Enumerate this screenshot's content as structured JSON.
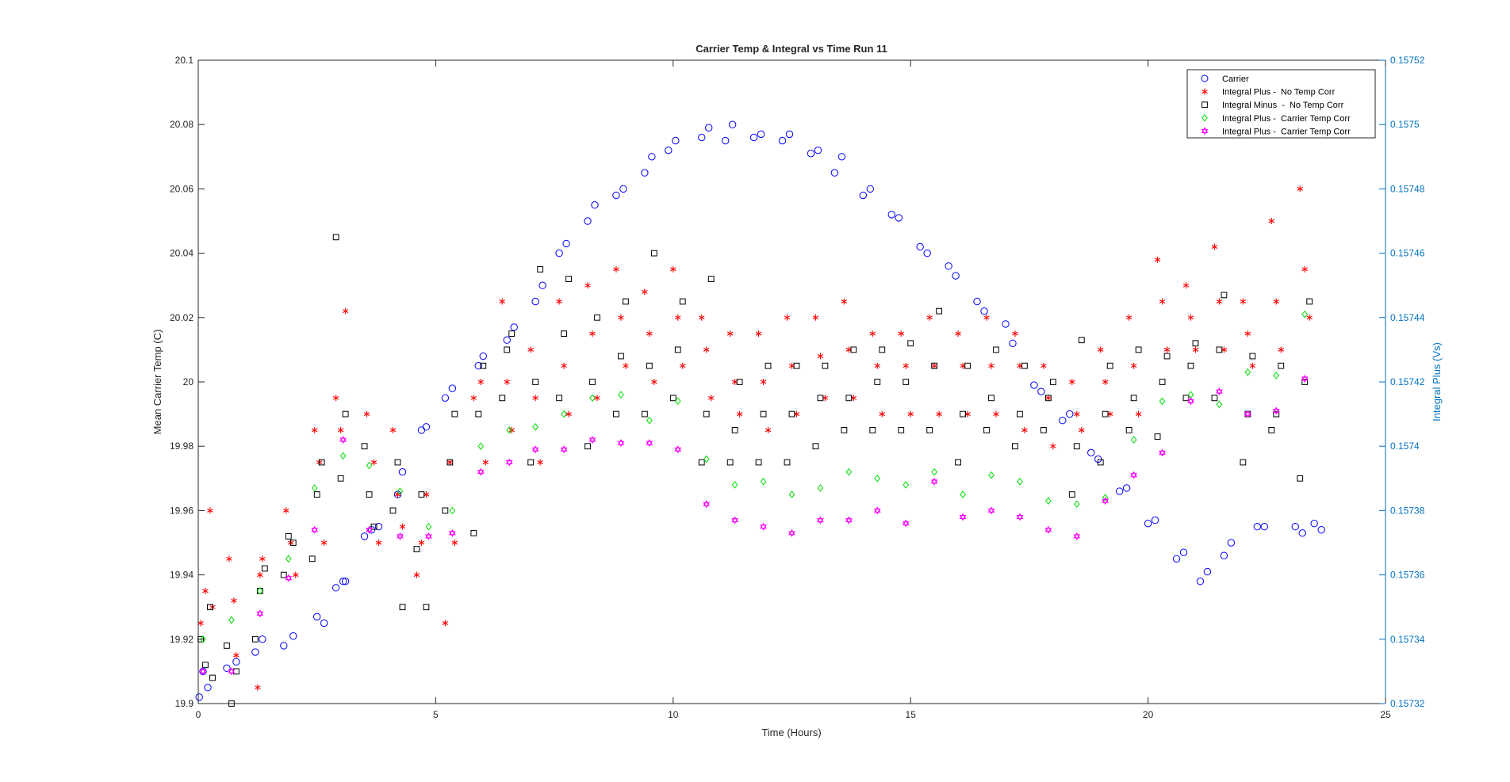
{
  "chart_data": {
    "type": "scatter",
    "title": "Carrier Temp & Integral vs Time Run 11",
    "xlabel": "Time (Hours)",
    "ylabel": "Mean Carrier Temp (C)",
    "ylabel_right": "Integral Plus (Vs)",
    "xlim": [
      0,
      25
    ],
    "ylim": [
      19.9,
      20.1
    ],
    "ylim_right": [
      0.15732,
      0.15752
    ],
    "x_ticks": [
      "0",
      "5",
      "10",
      "15",
      "20",
      "25"
    ],
    "y_ticks": [
      "19.9",
      "19.92",
      "19.94",
      "19.96",
      "19.98",
      "20",
      "20.02",
      "20.04",
      "20.06",
      "20.08",
      "20.1"
    ],
    "y_ticks_right": [
      "0.15732",
      "0.15734",
      "0.15736",
      "0.15738",
      "0.1574",
      "0.15742",
      "0.15744",
      "0.15746",
      "0.15748",
      "0.1575",
      "0.15752"
    ],
    "legend_position": "top-right",
    "grid": false,
    "colors": {
      "carrier": "#0000FF",
      "integral_plus_no_corr": "#FF0000",
      "integral_minus_no_corr": "#000000",
      "integral_plus_carrier_corr": "#00DD00",
      "integral_plus_carrier_corr_2": "#FF00FF",
      "right_axis": "#0072BD"
    },
    "series": [
      {
        "name": "Carrier",
        "axis": "left",
        "marker": "circle",
        "x": [
          0.02,
          0.1,
          0.2,
          0.6,
          0.8,
          1.2,
          1.35,
          1.8,
          2.0,
          2.5,
          2.65,
          2.9,
          3.05,
          3.1,
          3.5,
          3.65,
          3.8,
          4.2,
          4.3,
          4.7,
          4.8,
          5.2,
          5.35,
          5.9,
          6.0,
          6.5,
          6.65,
          7.1,
          7.25,
          7.6,
          7.75,
          8.2,
          8.35,
          8.8,
          8.95,
          9.4,
          9.55,
          9.9,
          10.05,
          10.6,
          10.75,
          11.1,
          11.25,
          11.7,
          11.85,
          12.3,
          12.45,
          12.9,
          13.05,
          13.4,
          13.55,
          14.0,
          14.15,
          14.6,
          14.75,
          15.2,
          15.35,
          15.8,
          15.95,
          16.4,
          16.55,
          17.0,
          17.15,
          17.6,
          17.75,
          18.2,
          18.35,
          18.8,
          18.95,
          19.4,
          19.55,
          20.0,
          20.15,
          20.6,
          20.75,
          21.1,
          21.25,
          21.6,
          21.75,
          22.3,
          22.45,
          23.1,
          23.25,
          23.5,
          23.65
        ],
        "y": [
          19.902,
          19.91,
          19.905,
          19.911,
          19.913,
          19.916,
          19.92,
          19.918,
          19.921,
          19.927,
          19.925,
          19.936,
          19.938,
          19.938,
          19.952,
          19.954,
          19.955,
          19.965,
          19.972,
          19.985,
          19.986,
          19.995,
          19.998,
          20.005,
          20.008,
          20.013,
          20.017,
          20.025,
          20.03,
          20.04,
          20.043,
          20.05,
          20.055,
          20.058,
          20.06,
          20.065,
          20.07,
          20.072,
          20.075,
          20.076,
          20.079,
          20.075,
          20.08,
          20.076,
          20.077,
          20.075,
          20.077,
          20.071,
          20.072,
          20.065,
          20.07,
          20.058,
          20.06,
          20.052,
          20.051,
          20.042,
          20.04,
          20.036,
          20.033,
          20.025,
          20.022,
          20.018,
          20.012,
          19.999,
          19.997,
          19.988,
          19.99,
          19.978,
          19.976,
          19.966,
          19.967,
          19.956,
          19.957,
          19.945,
          19.947,
          19.938,
          19.941,
          19.946,
          19.95,
          19.955,
          19.955,
          19.955,
          19.953,
          19.956,
          19.954
        ]
      },
      {
        "name": "Integral Plus -  No Temp Corr",
        "axis": "left",
        "marker": "asterisk",
        "x": [
          0.05,
          0.15,
          0.25,
          0.3,
          0.65,
          0.75,
          0.8,
          1.25,
          1.3,
          1.35,
          1.85,
          1.95,
          2.05,
          2.45,
          2.55,
          2.65,
          2.9,
          3.0,
          3.1,
          3.55,
          3.7,
          3.8,
          4.1,
          4.2,
          4.3,
          4.6,
          4.7,
          4.8,
          5.2,
          5.3,
          5.4,
          5.8,
          5.95,
          6.05,
          6.4,
          6.5,
          6.6,
          7.0,
          7.1,
          7.2,
          7.6,
          7.7,
          7.8,
          8.2,
          8.3,
          8.4,
          8.8,
          8.9,
          9.0,
          9.4,
          9.5,
          9.6,
          10.0,
          10.1,
          10.2,
          10.6,
          10.7,
          10.8,
          11.2,
          11.3,
          11.4,
          11.8,
          11.9,
          12.0,
          12.4,
          12.5,
          12.6,
          13.0,
          13.1,
          13.2,
          13.6,
          13.7,
          13.8,
          14.2,
          14.3,
          14.4,
          14.8,
          14.9,
          15.0,
          15.4,
          15.5,
          15.6,
          16.0,
          16.1,
          16.2,
          16.6,
          16.7,
          16.8,
          17.2,
          17.3,
          17.4,
          17.8,
          17.9,
          18.0,
          18.4,
          18.5,
          18.6,
          19.0,
          19.1,
          19.2,
          19.6,
          19.7,
          19.8,
          20.2,
          20.3,
          20.4,
          20.8,
          20.9,
          21.0,
          21.4,
          21.5,
          21.6,
          22.0,
          22.1,
          22.2,
          22.6,
          22.7,
          22.8,
          23.2,
          23.3,
          23.4
        ],
        "y": [
          19.925,
          19.935,
          19.96,
          19.93,
          19.945,
          19.932,
          19.915,
          19.905,
          19.94,
          19.945,
          19.96,
          19.95,
          19.94,
          19.985,
          19.975,
          19.95,
          19.995,
          19.985,
          20.022,
          19.99,
          19.975,
          19.95,
          19.985,
          19.965,
          19.955,
          19.94,
          19.95,
          19.965,
          19.925,
          19.975,
          19.95,
          19.995,
          20.0,
          19.975,
          20.025,
          20.0,
          19.985,
          20.01,
          19.995,
          19.975,
          20.025,
          20.005,
          19.99,
          20.03,
          20.015,
          19.995,
          20.035,
          20.02,
          20.005,
          20.028,
          20.015,
          20.0,
          20.035,
          20.02,
          20.005,
          20.02,
          20.01,
          19.995,
          20.015,
          20.0,
          19.99,
          20.015,
          20.0,
          19.985,
          20.02,
          20.005,
          19.99,
          20.02,
          20.008,
          19.995,
          20.025,
          20.01,
          19.995,
          20.015,
          20.005,
          19.99,
          20.015,
          20.005,
          19.99,
          20.02,
          20.005,
          19.99,
          20.015,
          20.005,
          19.99,
          20.02,
          20.005,
          19.99,
          20.015,
          20.005,
          19.985,
          20.005,
          19.995,
          19.98,
          20.0,
          19.99,
          19.985,
          20.01,
          20.0,
          19.99,
          20.02,
          20.005,
          19.99,
          20.038,
          20.025,
          20.01,
          20.03,
          20.02,
          20.01,
          20.042,
          20.025,
          20.01,
          20.025,
          20.015,
          20.005,
          20.05,
          20.025,
          20.01,
          20.06,
          20.035,
          20.02
        ]
      },
      {
        "name": "Integral Minus  -  No Temp Corr",
        "axis": "left",
        "marker": "square",
        "x": [
          0.05,
          0.15,
          0.25,
          0.3,
          0.6,
          0.7,
          0.8,
          1.2,
          1.3,
          1.4,
          1.8,
          1.9,
          2.0,
          2.4,
          2.5,
          2.6,
          2.9,
          3.0,
          3.1,
          3.5,
          3.6,
          3.7,
          4.1,
          4.2,
          4.3,
          4.6,
          4.7,
          4.8,
          5.2,
          5.3,
          5.4,
          5.8,
          5.9,
          6.0,
          6.4,
          6.5,
          6.6,
          7.0,
          7.1,
          7.2,
          7.6,
          7.7,
          7.8,
          8.2,
          8.3,
          8.4,
          8.8,
          8.9,
          9.0,
          9.4,
          9.5,
          9.6,
          10.0,
          10.1,
          10.2,
          10.6,
          10.7,
          10.8,
          11.2,
          11.3,
          11.4,
          11.8,
          11.9,
          12.0,
          12.4,
          12.5,
          12.6,
          13.0,
          13.1,
          13.2,
          13.6,
          13.7,
          13.8,
          14.2,
          14.3,
          14.4,
          14.8,
          14.9,
          15.0,
          15.4,
          15.5,
          15.6,
          16.0,
          16.1,
          16.2,
          16.6,
          16.7,
          16.8,
          17.2,
          17.3,
          17.4,
          17.8,
          17.9,
          18.0,
          18.4,
          18.5,
          18.6,
          19.0,
          19.1,
          19.2,
          19.6,
          19.7,
          19.8,
          20.2,
          20.3,
          20.4,
          20.8,
          20.9,
          21.0,
          21.4,
          21.5,
          21.6,
          22.0,
          22.1,
          22.2,
          22.6,
          22.7,
          22.8,
          23.2,
          23.3,
          23.4
        ],
        "y": [
          19.92,
          19.912,
          19.93,
          19.908,
          19.918,
          19.9,
          19.91,
          19.92,
          19.935,
          19.942,
          19.94,
          19.952,
          19.95,
          19.945,
          19.965,
          19.975,
          20.045,
          19.97,
          19.99,
          19.98,
          19.965,
          19.955,
          19.96,
          19.975,
          19.93,
          19.948,
          19.965,
          19.93,
          19.96,
          19.975,
          19.99,
          19.953,
          19.99,
          20.005,
          19.995,
          20.01,
          20.015,
          19.975,
          20.0,
          20.035,
          19.995,
          20.015,
          20.032,
          19.98,
          20.0,
          20.02,
          19.99,
          20.008,
          20.025,
          19.99,
          20.005,
          20.04,
          19.995,
          20.01,
          20.025,
          19.975,
          19.99,
          20.032,
          19.975,
          19.985,
          20.0,
          19.975,
          19.99,
          20.005,
          19.975,
          19.99,
          20.005,
          19.98,
          19.995,
          20.005,
          19.985,
          19.995,
          20.01,
          19.985,
          20.0,
          20.01,
          19.985,
          20.0,
          20.012,
          19.985,
          20.005,
          20.022,
          19.975,
          19.99,
          20.005,
          19.985,
          19.995,
          20.01,
          19.98,
          19.99,
          20.005,
          19.985,
          19.995,
          20.0,
          19.965,
          19.98,
          20.013,
          19.975,
          19.99,
          20.005,
          19.985,
          19.995,
          20.01,
          19.983,
          20.0,
          20.008,
          19.995,
          20.005,
          20.012,
          19.995,
          20.01,
          20.027,
          19.975,
          19.99,
          20.008,
          19.985,
          19.99,
          20.005,
          19.97,
          20.0,
          20.025
        ]
      },
      {
        "name": "Integral Plus -  Carrier Temp Corr",
        "axis": "left",
        "marker": "diamond",
        "x": [
          0.1,
          0.7,
          1.3,
          1.9,
          2.45,
          3.05,
          3.6,
          4.25,
          4.85,
          5.35,
          5.95,
          6.55,
          7.1,
          7.7,
          8.3,
          8.9,
          9.5,
          10.1,
          10.7,
          11.3,
          11.9,
          12.5,
          13.1,
          13.7,
          14.3,
          14.9,
          15.5,
          16.1,
          16.7,
          17.3,
          17.9,
          18.5,
          19.1,
          19.7,
          20.3,
          20.9,
          21.5,
          22.1,
          22.7,
          23.3
        ],
        "y": [
          19.92,
          19.926,
          19.935,
          19.945,
          19.967,
          19.977,
          19.974,
          19.966,
          19.955,
          19.96,
          19.98,
          19.985,
          19.986,
          19.99,
          19.995,
          19.996,
          19.988,
          19.994,
          19.976,
          19.968,
          19.969,
          19.965,
          19.967,
          19.972,
          19.97,
          19.968,
          19.972,
          19.965,
          19.971,
          19.969,
          19.963,
          19.962,
          19.964,
          19.982,
          19.994,
          19.996,
          19.993,
          20.003,
          20.002,
          20.021
        ]
      },
      {
        "name": "Integral Plus -  Carrier Temp Corr",
        "axis": "left",
        "marker": "hexagram",
        "x": [
          0.1,
          0.7,
          1.3,
          1.9,
          2.45,
          3.05,
          3.6,
          4.25,
          4.85,
          5.35,
          5.95,
          6.55,
          7.1,
          7.7,
          8.3,
          8.9,
          9.5,
          10.1,
          10.7,
          11.3,
          11.9,
          12.5,
          13.1,
          13.7,
          14.3,
          14.9,
          15.5,
          16.1,
          16.7,
          17.3,
          17.9,
          18.5,
          19.1,
          19.7,
          20.3,
          20.9,
          21.5,
          22.1,
          22.7,
          23.3
        ],
        "y": [
          19.91,
          19.91,
          19.928,
          19.939,
          19.954,
          19.982,
          19.954,
          19.952,
          19.952,
          19.953,
          19.972,
          19.975,
          19.979,
          19.979,
          19.982,
          19.981,
          19.981,
          19.979,
          19.962,
          19.957,
          19.955,
          19.953,
          19.957,
          19.957,
          19.96,
          19.956,
          19.969,
          19.958,
          19.96,
          19.958,
          19.954,
          19.952,
          19.963,
          19.971,
          19.978,
          19.994,
          19.997,
          19.99,
          19.991,
          20.001
        ]
      }
    ]
  }
}
